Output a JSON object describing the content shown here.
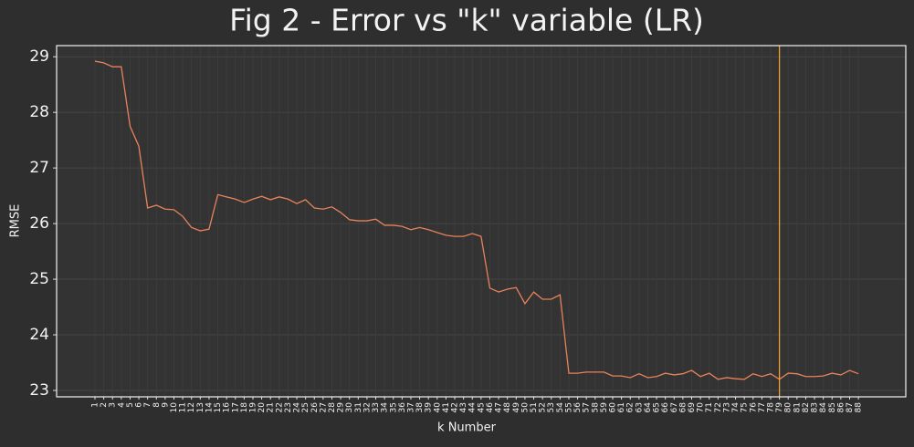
{
  "chart_data": {
    "type": "line",
    "title": "Fig 2 - Error vs \"k\" variable (LR)",
    "xlabel": "k Number",
    "ylabel": "RMSE",
    "x": [
      1,
      2,
      3,
      4,
      5,
      6,
      7,
      8,
      9,
      10,
      11,
      12,
      13,
      14,
      15,
      16,
      17,
      18,
      19,
      20,
      21,
      22,
      23,
      24,
      25,
      26,
      27,
      28,
      29,
      30,
      31,
      32,
      33,
      34,
      35,
      36,
      37,
      38,
      39,
      40,
      41,
      42,
      43,
      44,
      45,
      46,
      47,
      48,
      49,
      50,
      51,
      52,
      53,
      54,
      55,
      56,
      57,
      58,
      59,
      60,
      61,
      62,
      63,
      64,
      65,
      66,
      67,
      68,
      69,
      70,
      71,
      72,
      73,
      74,
      75,
      76,
      77,
      78,
      79,
      80,
      81,
      82,
      83,
      84,
      85,
      86,
      87,
      88
    ],
    "series": [
      {
        "name": "RMSE",
        "color": "#e8825a",
        "values": [
          28.92,
          28.89,
          28.82,
          28.82,
          27.75,
          27.39,
          26.28,
          26.33,
          26.26,
          26.25,
          26.13,
          25.93,
          25.87,
          25.9,
          26.52,
          26.48,
          26.44,
          26.38,
          26.44,
          26.49,
          26.43,
          26.48,
          26.44,
          26.36,
          26.43,
          26.28,
          26.26,
          26.3,
          26.2,
          26.07,
          26.05,
          26.05,
          26.08,
          25.97,
          25.97,
          25.95,
          25.89,
          25.93,
          25.89,
          25.84,
          25.79,
          25.77,
          25.77,
          25.82,
          25.77,
          24.84,
          24.77,
          24.82,
          24.85,
          24.56,
          24.77,
          24.64,
          24.64,
          24.72,
          23.31,
          23.31,
          23.33,
          23.33,
          23.33,
          23.26,
          23.26,
          23.23,
          23.3,
          23.23,
          23.25,
          23.31,
          23.28,
          23.3,
          23.36,
          23.25,
          23.31,
          23.2,
          23.23,
          23.21,
          23.2,
          23.3,
          23.25,
          23.3,
          23.2,
          23.31,
          23.3,
          23.25,
          23.25,
          23.26,
          23.31,
          23.28,
          23.36,
          23.3
        ]
      }
    ],
    "vline": {
      "x": 79,
      "color": "#f0a030"
    },
    "xlim": [
      -3.37,
      93.4
    ],
    "xticks": [
      1,
      2,
      3,
      4,
      5,
      6,
      7,
      8,
      9,
      10,
      11,
      12,
      13,
      14,
      15,
      16,
      17,
      18,
      19,
      20,
      21,
      22,
      23,
      24,
      25,
      26,
      27,
      28,
      29,
      30,
      31,
      32,
      33,
      34,
      35,
      36,
      37,
      38,
      39,
      40,
      41,
      42,
      43,
      44,
      45,
      46,
      47,
      48,
      49,
      50,
      51,
      52,
      53,
      54,
      55,
      56,
      57,
      58,
      59,
      60,
      61,
      62,
      63,
      64,
      65,
      66,
      67,
      68,
      69,
      70,
      71,
      72,
      73,
      74,
      75,
      76,
      77,
      78,
      79,
      80,
      81,
      82,
      83,
      84,
      85,
      86,
      87,
      88
    ],
    "ylim": [
      22.885,
      29.2
    ],
    "yticks": [
      23,
      24,
      25,
      26,
      27,
      28,
      29
    ],
    "grid": true
  }
}
